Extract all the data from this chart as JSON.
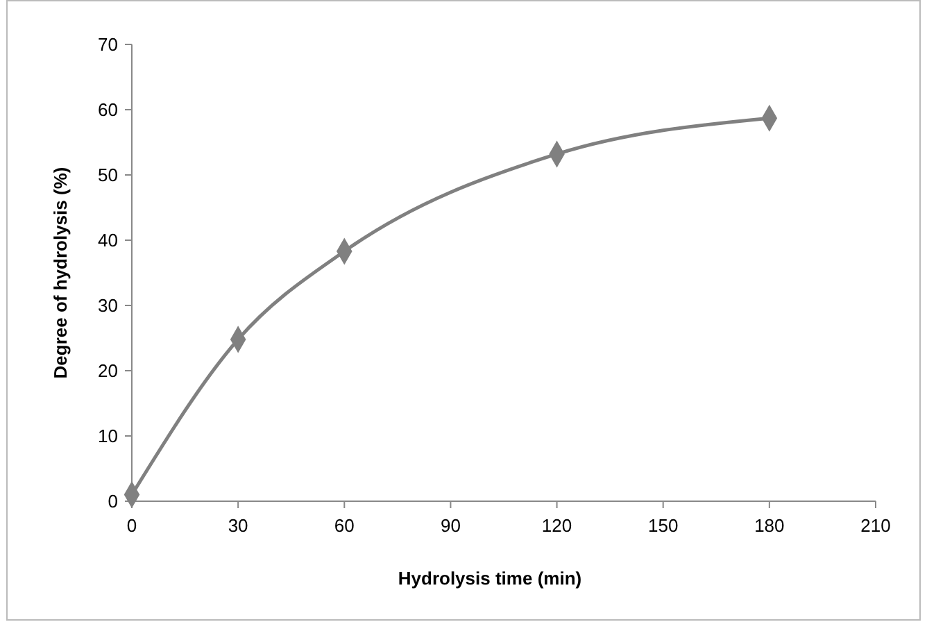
{
  "chart_data": {
    "type": "line",
    "xlabel": "Hydrolysis time (min)",
    "ylabel": "Degree of hydrolysis (%)",
    "x": [
      0,
      30,
      60,
      120,
      180
    ],
    "series": [
      {
        "color": "#808080",
        "values": [
          1,
          24.8,
          38.3,
          53.2,
          58.7
        ]
      }
    ],
    "xlim": [
      0,
      210
    ],
    "xticks": [
      0,
      30,
      60,
      90,
      120,
      150,
      180,
      210
    ],
    "ylim": [
      0,
      70
    ],
    "yticks": [
      0,
      10,
      20,
      30,
      40,
      50,
      60,
      70
    ],
    "grid": false,
    "marker": "diamond",
    "line_style": "solid"
  }
}
